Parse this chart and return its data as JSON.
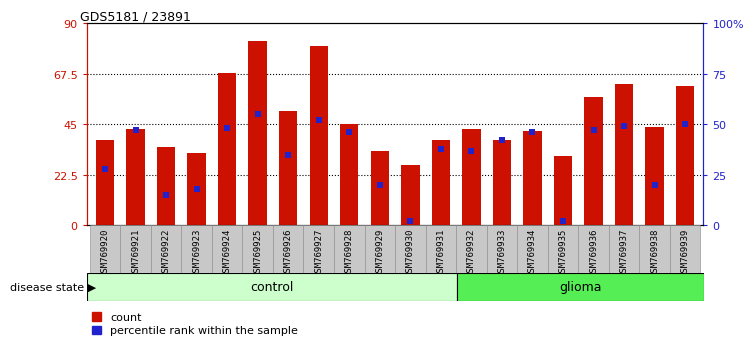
{
  "title": "GDS5181 / 23891",
  "samples": [
    "GSM769920",
    "GSM769921",
    "GSM769922",
    "GSM769923",
    "GSM769924",
    "GSM769925",
    "GSM769926",
    "GSM769927",
    "GSM769928",
    "GSM769929",
    "GSM769930",
    "GSM769931",
    "GSM769932",
    "GSM769933",
    "GSM769934",
    "GSM769935",
    "GSM769936",
    "GSM769937",
    "GSM769938",
    "GSM769939"
  ],
  "counts": [
    38,
    43,
    35,
    32,
    68,
    82,
    51,
    80,
    45,
    33,
    27,
    38,
    43,
    38,
    42,
    31,
    57,
    63,
    44,
    62
  ],
  "percentile_ranks": [
    28,
    47,
    15,
    18,
    48,
    55,
    35,
    52,
    46,
    20,
    2,
    38,
    37,
    42,
    46,
    2,
    47,
    49,
    20,
    50
  ],
  "control_count": 12,
  "glioma_count": 8,
  "bar_color": "#cc1100",
  "marker_color": "#2222cc",
  "tick_bg_color": "#c8c8c8",
  "control_bg": "#ccffcc",
  "glioma_bg": "#55ee55",
  "left_axis_color": "#cc1100",
  "right_axis_color": "#2222cc",
  "ylim_left": [
    0,
    90
  ],
  "ylim_right": [
    0,
    100
  ],
  "yticks_left": [
    0,
    22.5,
    45,
    67.5,
    90
  ],
  "ytick_labels_left": [
    "0",
    "22.5",
    "45",
    "67.5",
    "90"
  ],
  "yticks_right": [
    0,
    25,
    50,
    75,
    100
  ],
  "ytick_labels_right": [
    "0",
    "25",
    "50",
    "75",
    "100%"
  ],
  "grid_values": [
    22.5,
    45,
    67.5
  ],
  "legend_count_label": "count",
  "legend_pct_label": "percentile rank within the sample",
  "disease_state_label": "disease state",
  "control_label": "control",
  "glioma_label": "glioma"
}
